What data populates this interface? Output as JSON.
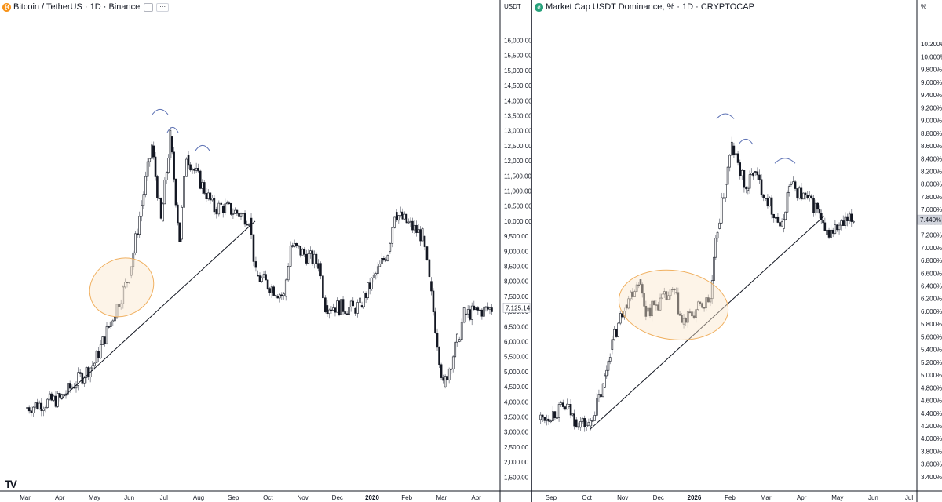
{
  "left": {
    "title": "Bitcoin / TetherUS · 1D · Binance",
    "symbol_icon": "bitcoin-icon",
    "unit": "USDT",
    "price_label": "7,125.14",
    "logo": "TV",
    "chart_data": {
      "type": "candlestick",
      "title": "Bitcoin / TetherUS · 1D · Binance",
      "y_ticks": [
        "16,000.00",
        "15,500.00",
        "15,000.00",
        "14,500.00",
        "14,000.00",
        "13,500.00",
        "13,000.00",
        "12,500.00",
        "12,000.00",
        "11,500.00",
        "11,000.00",
        "10,500.00",
        "10,000.00",
        "9,500.00",
        "9,000.00",
        "8,500.00",
        "8,000.00",
        "7,500.00",
        "7,000.00",
        "6,500.00",
        "6,000.00",
        "5,500.00",
        "5,000.00",
        "4,500.00",
        "4,000.00",
        "3,500.00",
        "3,000.00",
        "2,500.00",
        "2,000.00",
        "1,500.00"
      ],
      "x_ticks": [
        "Mar",
        "Apr",
        "May",
        "Jun",
        "Jul",
        "Aug",
        "Sep",
        "Oct",
        "Nov",
        "Dec",
        "2020",
        "Feb",
        "Mar",
        "Apr"
      ],
      "ylim": [
        1300,
        16300
      ],
      "current_price": 7125.14,
      "path": [
        [
          "Mar",
          3800
        ],
        [
          "Apr",
          4100
        ],
        [
          "May",
          5300
        ],
        [
          "Jun",
          8200
        ],
        [
          "Jul",
          12500
        ],
        [
          "Jul",
          10000
        ],
        [
          "Jul",
          12800
        ],
        [
          "Jul",
          9400
        ],
        [
          "Aug",
          12200
        ],
        [
          "Aug",
          10400
        ],
        [
          "Sep",
          10500
        ],
        [
          "Sep",
          10100
        ],
        [
          "Oct",
          8200
        ],
        [
          "Oct",
          7500
        ],
        [
          "Nov",
          9200
        ],
        [
          "Nov",
          8600
        ],
        [
          "Dec",
          7200
        ],
        [
          "Dec",
          7100
        ],
        [
          "2020",
          7200
        ],
        [
          "2020",
          9000
        ],
        [
          "Feb",
          10300
        ],
        [
          "Feb",
          9500
        ],
        [
          "Mar",
          8000
        ],
        [
          "Mar",
          4500
        ],
        [
          "Mar",
          6000
        ],
        [
          "Apr",
          6900
        ],
        [
          "Apr",
          7100
        ]
      ],
      "annotations": {
        "trendline": [
          [
            "Apr",
            4100
          ],
          [
            "Sep",
            10000
          ]
        ],
        "ellipse_center": [
          "Jun",
          7800
        ],
        "arcs": [
          [
            "Jul",
            13700
          ],
          [
            "Jul",
            13100
          ],
          [
            "Aug",
            12500
          ]
        ]
      },
      "colors": {
        "up": "#ffffff",
        "down": "#131722",
        "wick": "#131722",
        "ellipse_fill": "#fbe7cc",
        "ellipse_stroke": "#f0b060",
        "arc": "#5a6fb3"
      }
    }
  },
  "right": {
    "title": "Market Cap USDT Dominance, % · 1D · CRYPTOCAP",
    "symbol_icon": "tether-icon",
    "unit": "%",
    "price_label": "7.440%",
    "settings_icon": "settings-icon",
    "chart_data": {
      "type": "candlestick",
      "title": "Market Cap USDT Dominance, % · 1D · CRYPTOCAP",
      "y_ticks": [
        "10.200%",
        "10.000%",
        "9.800%",
        "9.600%",
        "9.400%",
        "9.200%",
        "9.000%",
        "8.800%",
        "8.600%",
        "8.400%",
        "8.200%",
        "8.000%",
        "7.800%",
        "7.600%",
        "7.400%",
        "7.200%",
        "7.000%",
        "6.800%",
        "6.600%",
        "6.400%",
        "6.200%",
        "6.000%",
        "5.800%",
        "5.600%",
        "5.400%",
        "5.200%",
        "5.000%",
        "4.800%",
        "4.600%",
        "4.400%",
        "4.200%",
        "4.000%",
        "3.800%",
        "3.600%",
        "3.400%"
      ],
      "x_ticks": [
        "Sep",
        "Oct",
        "Nov",
        "Dec",
        "2026",
        "Feb",
        "Mar",
        "Apr",
        "May",
        "Jun",
        "Jul"
      ],
      "ylim": [
        3.3,
        10.4
      ],
      "current_price": 7.44,
      "path": [
        [
          "Sep",
          4.3
        ],
        [
          "Sep",
          4.5
        ],
        [
          "Oct",
          4.3
        ],
        [
          "Oct",
          4.2
        ],
        [
          "Oct",
          4.8
        ],
        [
          "Nov",
          5.4
        ],
        [
          "Nov",
          6.1
        ],
        [
          "Nov",
          6.5
        ],
        [
          "Dec",
          6.0
        ],
        [
          "Dec",
          6.3
        ],
        [
          "2026",
          5.8
        ],
        [
          "2026",
          6.2
        ],
        [
          "Feb",
          7.3
        ],
        [
          "Feb",
          8.6
        ],
        [
          "Feb",
          7.9
        ],
        [
          "Mar",
          8.2
        ],
        [
          "Mar",
          7.3
        ],
        [
          "Apr",
          8.0
        ],
        [
          "Apr",
          7.6
        ],
        [
          "May",
          7.2
        ],
        [
          "May",
          7.45
        ]
      ],
      "annotations": {
        "trendline": [
          [
            "Oct",
            4.15
          ],
          [
            "May",
            7.5
          ]
        ],
        "ellipse_center": [
          "Dec",
          6.1
        ],
        "arcs": [
          [
            "Feb",
            9.1
          ],
          [
            "Mar",
            8.7
          ],
          [
            "Apr",
            8.4
          ]
        ]
      },
      "colors": {
        "up": "#ffffff",
        "down": "#131722",
        "wick": "#131722",
        "ellipse_fill": "#fbe7cc",
        "ellipse_stroke": "#f0b060",
        "arc": "#5a6fb3"
      }
    }
  }
}
